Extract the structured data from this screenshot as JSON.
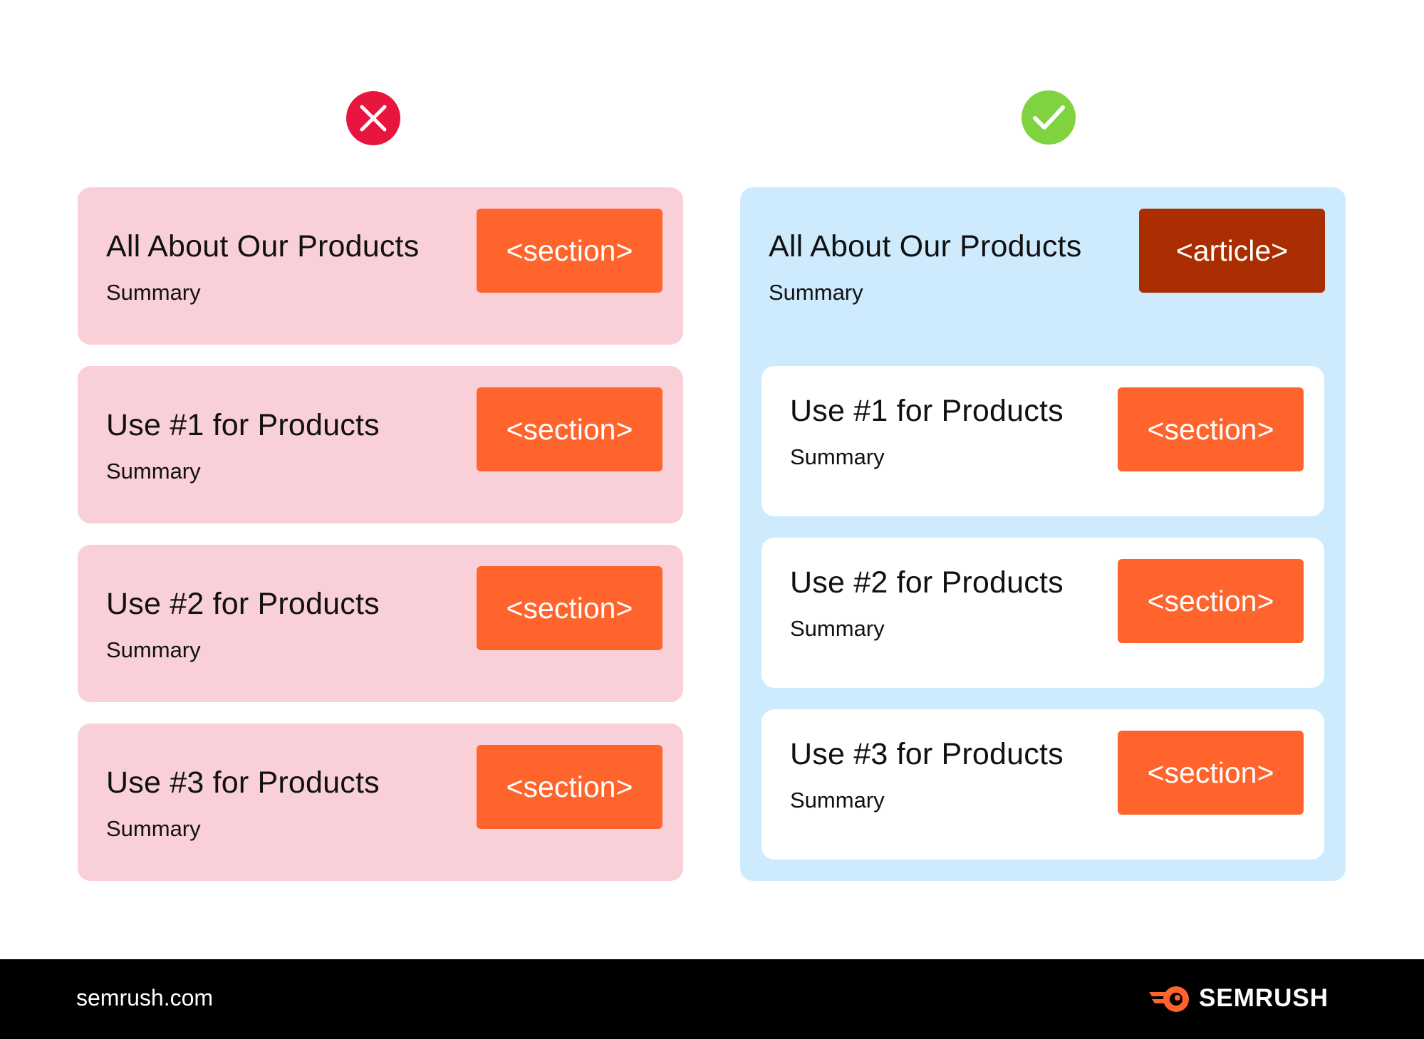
{
  "colors": {
    "wrong_panel": "#f9cfd8",
    "right_panel": "#cdebfd",
    "section_tag": "#ff642d",
    "article_tag": "#ab2e03",
    "wrong_icon": "#e8153f",
    "right_icon": "#7ed33f",
    "footer": "#000000"
  },
  "icons": {
    "wrong": "x-circle-icon",
    "right": "check-circle-icon",
    "brand": "semrush-logo-icon"
  },
  "wrong": {
    "cards": [
      {
        "title": "All About Our Products",
        "summary": "Summary",
        "tag": "<section>"
      },
      {
        "title": "Use #1 for Products",
        "summary": "Summary",
        "tag": "<section>"
      },
      {
        "title": "Use #2 for Products",
        "summary": "Summary",
        "tag": "<section>"
      },
      {
        "title": "Use #3 for Products",
        "summary": "Summary",
        "tag": "<section>"
      }
    ]
  },
  "right": {
    "article": {
      "title": "All About Our Products",
      "summary": "Summary",
      "tag": "<article>"
    },
    "cards": [
      {
        "title": "Use #1 for Products",
        "summary": "Summary",
        "tag": "<section>"
      },
      {
        "title": "Use #2 for Products",
        "summary": "Summary",
        "tag": "<section>"
      },
      {
        "title": "Use #3 for Products",
        "summary": "Summary",
        "tag": "<section>"
      }
    ]
  },
  "footer": {
    "url": "semrush.com",
    "brand": "SEMRUSH"
  }
}
